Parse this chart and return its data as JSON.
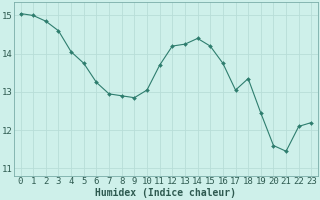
{
  "x": [
    0,
    1,
    2,
    3,
    4,
    5,
    6,
    7,
    8,
    9,
    10,
    11,
    12,
    13,
    14,
    15,
    16,
    17,
    18,
    19,
    20,
    21,
    22,
    23
  ],
  "y": [
    15.05,
    15.0,
    14.85,
    14.6,
    14.05,
    13.75,
    13.25,
    12.95,
    12.9,
    12.85,
    13.05,
    13.7,
    14.2,
    14.25,
    14.4,
    14.2,
    13.75,
    13.05,
    13.35,
    12.45,
    11.6,
    11.45,
    12.1,
    12.2
  ],
  "line_color": "#2e7d6e",
  "marker": "D",
  "marker_size": 2.0,
  "bg_color": "#cef0ea",
  "grid_color": "#b8ddd8",
  "xlabel": "Humidex (Indice chaleur)",
  "ylim": [
    10.8,
    15.35
  ],
  "xlim": [
    -0.5,
    23.5
  ],
  "yticks": [
    11,
    12,
    13,
    14,
    15
  ],
  "xticks": [
    0,
    1,
    2,
    3,
    4,
    5,
    6,
    7,
    8,
    9,
    10,
    11,
    12,
    13,
    14,
    15,
    16,
    17,
    18,
    19,
    20,
    21,
    22,
    23
  ],
  "label_fontsize": 7,
  "tick_fontsize": 6.5
}
